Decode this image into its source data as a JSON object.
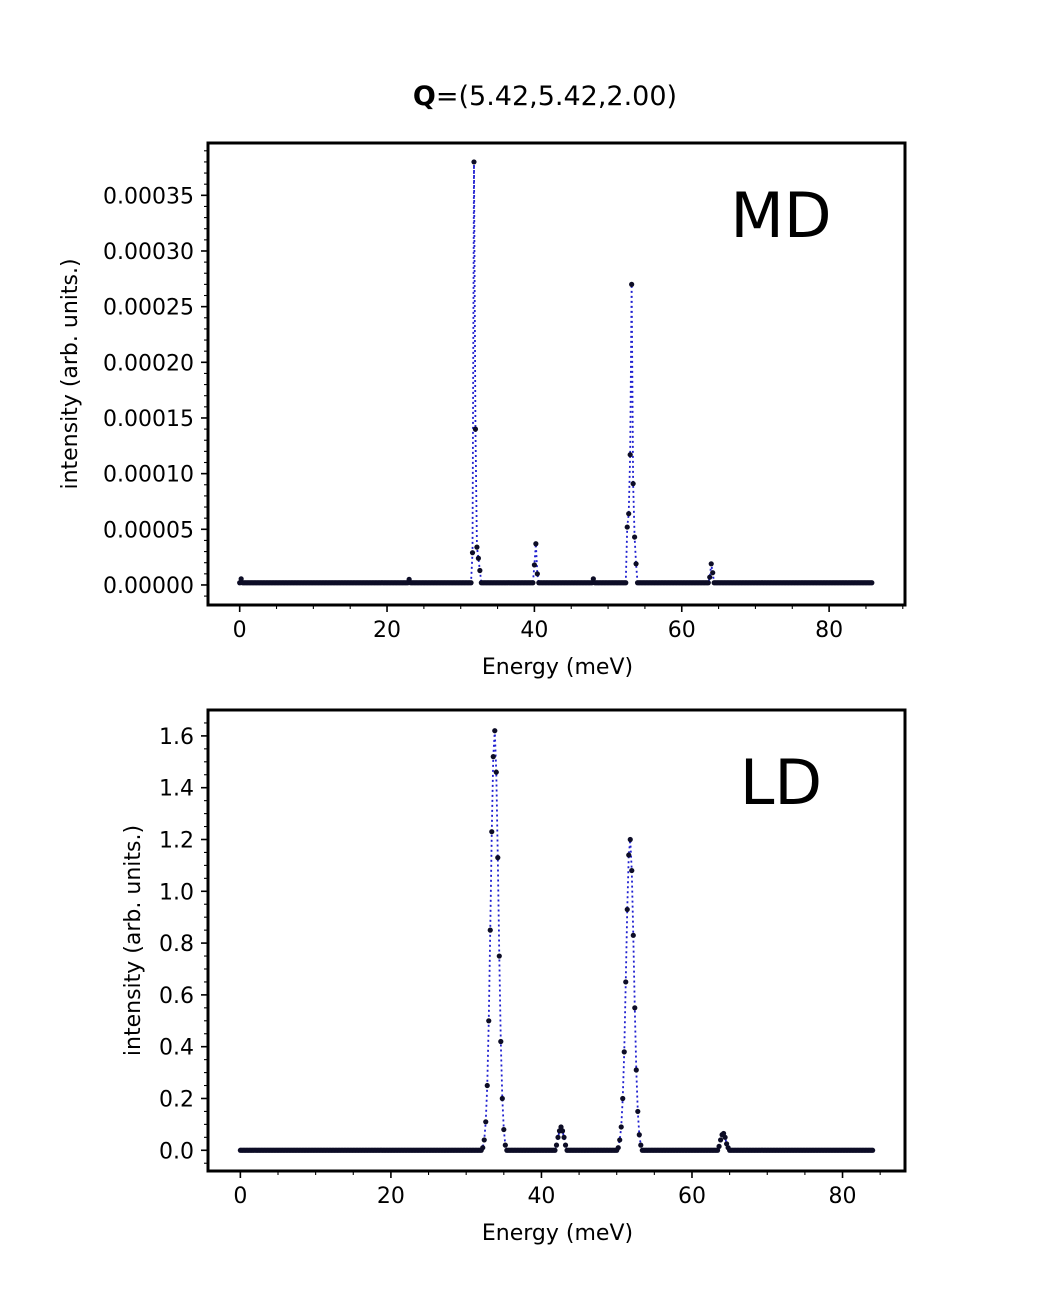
{
  "figure": {
    "title_bold": "Q",
    "title_rest": "=(5.42,5.42,2.00)"
  },
  "chart_data": [
    {
      "type": "line",
      "panel_label": "MD",
      "xlabel": "Energy (meV)",
      "ylabel": "intensity (arb. units.)",
      "xlim": [
        -4.3,
        90.3
      ],
      "ylim": [
        -1.8e-05,
        0.000397
      ],
      "xticks": [
        0,
        20,
        40,
        60,
        80
      ],
      "yticks": [
        0.0,
        5e-05,
        0.0001,
        0.00015,
        0.0002,
        0.00025,
        0.0003,
        0.00035
      ],
      "ytick_labels": [
        "0.00000",
        "0.00005",
        "0.00010",
        "0.00015",
        "0.00020",
        "0.00025",
        "0.00030",
        "0.00035"
      ],
      "x_range": [
        0,
        85.8
      ],
      "step": 0.2,
      "baseline": 2e-06,
      "peaks": [
        {
          "x": 0.2,
          "values": [
            5.5e-06
          ]
        },
        {
          "x": 23.0,
          "values": [
            5e-06
          ]
        },
        {
          "x": 31.8,
          "values": [
            2.9e-05,
            0.00038,
            0.00014,
            3.4e-05,
            2.4e-05,
            1.3e-05
          ]
        },
        {
          "x": 40.2,
          "values": [
            1.8e-05,
            3.7e-05,
            1e-05
          ]
        },
        {
          "x": 48.0,
          "values": [
            5.5e-06
          ]
        },
        {
          "x": 53.2,
          "values": [
            5.2e-05,
            6.4e-05,
            0.000117,
            0.00027,
            9.1e-05,
            4.3e-05,
            1.9e-05
          ]
        },
        {
          "x": 63.9,
          "values": [
            7e-06,
            1.9e-05,
            1.1e-05
          ]
        }
      ]
    },
    {
      "type": "line",
      "panel_label": "LD",
      "xlabel": "Energy (meV)",
      "ylabel": "intensity (arb. units.)",
      "xlim": [
        -4.3,
        88.3
      ],
      "ylim": [
        -0.08,
        1.7
      ],
      "xticks": [
        0,
        20,
        40,
        60,
        80
      ],
      "yticks": [
        0.0,
        0.2,
        0.4,
        0.6,
        0.8,
        1.0,
        1.2,
        1.4,
        1.6
      ],
      "ytick_labels": [
        "0.0",
        "0.2",
        "0.4",
        "0.6",
        "0.8",
        "1.0",
        "1.2",
        "1.4",
        "1.6"
      ],
      "x_range": [
        0,
        84
      ],
      "step": 0.2,
      "baseline": 0.0,
      "peaks": [
        {
          "x": 33.8,
          "values": [
            0.01,
            0.04,
            0.11,
            0.25,
            0.5,
            0.85,
            1.23,
            1.52,
            1.62,
            1.46,
            1.13,
            0.75,
            0.42,
            0.2,
            0.08,
            0.02
          ]
        },
        {
          "x": 42.6,
          "values": [
            0.02,
            0.05,
            0.075,
            0.09,
            0.075,
            0.05,
            0.02
          ]
        },
        {
          "x": 51.7,
          "values": [
            0.01,
            0.04,
            0.09,
            0.2,
            0.38,
            0.65,
            0.93,
            1.14,
            1.2,
            1.08,
            0.83,
            0.55,
            0.31,
            0.15,
            0.06,
            0.02
          ]
        },
        {
          "x": 64.3,
          "values": [
            0.015,
            0.04,
            0.06,
            0.065,
            0.05,
            0.025,
            0.01
          ]
        }
      ]
    }
  ]
}
